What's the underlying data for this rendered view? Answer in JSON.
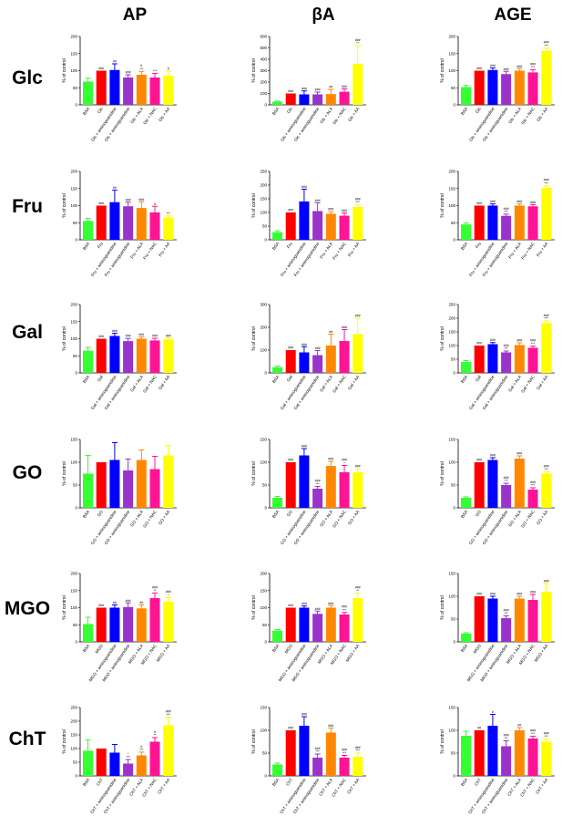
{
  "column_titles": [
    "AP",
    "βA",
    "AGE"
  ],
  "row_titles": [
    "Glc",
    "Fru",
    "Gal",
    "GO",
    "MGO",
    "ChT"
  ],
  "colors": [
    "#33ff33",
    "#ff0000",
    "#0000ff",
    "#9933cc",
    "#ff8800",
    "#ff1493",
    "#ffff00"
  ],
  "chart_data": [
    {
      "type": "bar",
      "row": "Glc",
      "column": "AP",
      "ylabel": "% of control",
      "yticks": [
        0,
        50,
        100,
        150,
        200
      ],
      "ylim": [
        0,
        200
      ],
      "categories": [
        "BSA",
        "Glc",
        "Glc + aminoguanidine",
        "Glc + aminoguanidine",
        "Glc + ALA",
        "Glc + NAC",
        "Glc + AA"
      ],
      "values": [
        68,
        100,
        102,
        80,
        88,
        80,
        85
      ],
      "errors": [
        10,
        0,
        18,
        8,
        10,
        12,
        14
      ],
      "labels": [
        "",
        "###",
        "##",
        "###",
        "#\n***",
        "***",
        "#"
      ]
    },
    {
      "type": "bar",
      "row": "Glc",
      "column": "βA",
      "ylabel": "% of control",
      "yticks": [
        0,
        100,
        200,
        300,
        400,
        500,
        600
      ],
      "ylim": [
        0,
        600
      ],
      "categories": [
        "BSA",
        "Glc",
        "Glc + aminoguanidine",
        "Glc + aminoguanidine",
        "Glc + ALA",
        "Glc + NAC",
        "Glc + AA"
      ],
      "values": [
        28,
        100,
        92,
        92,
        95,
        115,
        360
      ],
      "errors": [
        5,
        0,
        30,
        20,
        40,
        25,
        160
      ],
      "labels": [
        "",
        "###",
        "###",
        "###",
        "##",
        "###",
        "###\n**"
      ]
    },
    {
      "type": "bar",
      "row": "Glc",
      "column": "AGE",
      "ylabel": "% of control",
      "yticks": [
        0,
        50,
        100,
        150,
        200
      ],
      "ylim": [
        0,
        200
      ],
      "categories": [
        "BSA",
        "Glc",
        "Glc + aminoguanidine",
        "Glc + aminoguanidine",
        "Glc + ALA",
        "Glc + NAC",
        "Glc + AA"
      ],
      "values": [
        52,
        100,
        102,
        90,
        100,
        95,
        158
      ],
      "errors": [
        5,
        0,
        6,
        8,
        6,
        8,
        8
      ],
      "labels": [
        "",
        "###",
        "###",
        "###",
        "###",
        "###\n***",
        "###\n***"
      ]
    },
    {
      "type": "bar",
      "row": "Fru",
      "column": "AP",
      "ylabel": "% of control",
      "yticks": [
        0,
        50,
        100,
        150,
        200
      ],
      "ylim": [
        0,
        200
      ],
      "categories": [
        "BSA",
        "Fru",
        "Fru + aminoguanidine",
        "Fru + aminoguanidine",
        "Fru + ALA",
        "Fru + NAC",
        "Fru + AA"
      ],
      "values": [
        55,
        100,
        110,
        98,
        93,
        80,
        65
      ],
      "errors": [
        8,
        0,
        35,
        12,
        18,
        18,
        5
      ],
      "labels": [
        "",
        "###",
        "##",
        "###",
        "###",
        "#",
        "***"
      ]
    },
    {
      "type": "bar",
      "row": "Fru",
      "column": "βA",
      "ylabel": "% of control",
      "yticks": [
        0,
        50,
        100,
        150,
        200,
        250
      ],
      "ylim": [
        0,
        250
      ],
      "categories": [
        "BSA",
        "Fru",
        "Fru + aminoguanidine",
        "Fru + aminoguanidine",
        "Fru + ALA",
        "Fru + NAC",
        "Fru + AA"
      ],
      "values": [
        28,
        100,
        140,
        105,
        95,
        88,
        120
      ],
      "errors": [
        5,
        0,
        45,
        30,
        8,
        10,
        8
      ],
      "labels": [
        "",
        "###",
        "###",
        "###",
        "###",
        "###",
        "###\n***"
      ]
    },
    {
      "type": "bar",
      "row": "Fru",
      "column": "AGE",
      "ylabel": "% of control",
      "yticks": [
        0,
        50,
        100,
        150,
        200
      ],
      "ylim": [
        0,
        200
      ],
      "categories": [
        "BSA",
        "Fru",
        "Fru + aminoguanidine",
        "Fru + aminoguanidine",
        "Fru + ALA",
        "Fru + NAC",
        "Fru + AA"
      ],
      "values": [
        45,
        100,
        100,
        70,
        100,
        98,
        152
      ],
      "errors": [
        4,
        0,
        5,
        5,
        5,
        5,
        6
      ],
      "labels": [
        "",
        "###",
        "###",
        "###\n***",
        "###",
        "###",
        "###\n***"
      ]
    },
    {
      "type": "bar",
      "row": "Gal",
      "column": "AP",
      "ylabel": "% of control",
      "yticks": [
        0,
        50,
        100,
        150,
        200
      ],
      "ylim": [
        0,
        200
      ],
      "categories": [
        "BSA",
        "Gal",
        "Gal + aminoguanidine",
        "Gal + aminoguanidine",
        "Gal + ALA",
        "Gal + NAC",
        "Gal + AA"
      ],
      "values": [
        65,
        100,
        108,
        93,
        100,
        95,
        98
      ],
      "errors": [
        10,
        0,
        8,
        8,
        5,
        6,
        4
      ],
      "labels": [
        "",
        "###",
        "###",
        "###",
        "###",
        "###",
        "###"
      ]
    },
    {
      "type": "bar",
      "row": "Gal",
      "column": "βA",
      "ylabel": "% of control",
      "yticks": [
        0,
        100,
        200,
        300
      ],
      "ylim": [
        0,
        300
      ],
      "categories": [
        "BSA",
        "Gal",
        "Gal + aminoguanidine",
        "Gal + aminoguanidine",
        "Gal + ALA",
        "Gal + NAC",
        "Gal + AA"
      ],
      "values": [
        25,
        100,
        90,
        78,
        120,
        140,
        170
      ],
      "errors": [
        5,
        0,
        25,
        20,
        50,
        50,
        70
      ],
      "labels": [
        "",
        "###",
        "###",
        "###",
        "##",
        "###",
        "###"
      ]
    },
    {
      "type": "bar",
      "row": "Gal",
      "column": "AGE",
      "ylabel": "% of control",
      "yticks": [
        0,
        50,
        100,
        150,
        200,
        250
      ],
      "ylim": [
        0,
        250
      ],
      "categories": [
        "BSA",
        "Gal",
        "Gal + aminoguanidine",
        "Gal + aminoguanidine",
        "Gal + ALA",
        "Gal + NAC",
        "Gal + AA"
      ],
      "values": [
        40,
        100,
        105,
        75,
        102,
        92,
        182
      ],
      "errors": [
        5,
        0,
        6,
        5,
        8,
        6,
        8
      ],
      "labels": [
        "",
        "###",
        "###",
        "###\n***",
        "###",
        "###\n***",
        "###\n***"
      ]
    },
    {
      "type": "bar",
      "row": "GO",
      "column": "AP",
      "ylabel": "% of control",
      "yticks": [
        0,
        50,
        100,
        150
      ],
      "ylim": [
        0,
        150
      ],
      "categories": [
        "BSA",
        "GO",
        "GO + aminoguanidine",
        "GO + aminoguanidine",
        "GO + ALA",
        "GO + NAC",
        "GO + AA"
      ],
      "values": [
        75,
        100,
        105,
        82,
        105,
        85,
        115
      ],
      "errors": [
        40,
        0,
        38,
        25,
        22,
        28,
        22
      ],
      "labels": [
        "",
        "",
        "",
        "",
        "",
        "",
        ""
      ]
    },
    {
      "type": "bar",
      "row": "GO",
      "column": "βA",
      "ylabel": "% of control",
      "yticks": [
        0,
        50,
        100,
        150
      ],
      "ylim": [
        0,
        150
      ],
      "categories": [
        "BSA",
        "GO",
        "GO + aminoguanidine",
        "GO + aminoguanidine",
        "GO + ALA",
        "GO + NAC",
        "GO + AA"
      ],
      "values": [
        22,
        100,
        115,
        42,
        92,
        78,
        78
      ],
      "errors": [
        3,
        0,
        15,
        5,
        10,
        15,
        8
      ],
      "labels": [
        "",
        "###",
        "###",
        "###\n***",
        "###",
        "###\n*",
        "###"
      ]
    },
    {
      "type": "bar",
      "row": "GO",
      "column": "AGE",
      "ylabel": "% of control",
      "yticks": [
        0,
        50,
        100,
        150
      ],
      "ylim": [
        0,
        150
      ],
      "categories": [
        "BSA",
        "GO",
        "GO + aminoguanidine",
        "GO + aminoguanidine",
        "GO + ALA",
        "GO + NAC",
        "GO + AA"
      ],
      "values": [
        22,
        100,
        105,
        50,
        108,
        40,
        75
      ],
      "errors": [
        2,
        0,
        5,
        4,
        6,
        4,
        4
      ],
      "labels": [
        "",
        "###",
        "###",
        "###\n***",
        "###",
        "###\n***",
        "###\n***"
      ]
    },
    {
      "type": "bar",
      "row": "MGO",
      "column": "AP",
      "ylabel": "% of control",
      "yticks": [
        0,
        50,
        100,
        150,
        200
      ],
      "ylim": [
        0,
        200
      ],
      "categories": [
        "BSA",
        "MGO",
        "MGO + aminoguanidine",
        "MGO + aminoguanidine",
        "MGO + ALA",
        "MGO + NAC",
        "MGO + AA"
      ],
      "values": [
        52,
        100,
        100,
        102,
        98,
        128,
        118
      ],
      "errors": [
        20,
        0,
        8,
        12,
        10,
        15,
        12
      ],
      "labels": [
        "",
        "###",
        "##",
        "###",
        "##",
        "###\n**",
        "###\n*"
      ]
    },
    {
      "type": "bar",
      "row": "MGO",
      "column": "βA",
      "ylabel": "% of control",
      "yticks": [
        0,
        50,
        100,
        150,
        200
      ],
      "ylim": [
        0,
        200
      ],
      "categories": [
        "BSA",
        "MGO",
        "MGO + aminoguanidine",
        "MGO + aminoguanidine",
        "MGO + ALA",
        "MGO + NAC",
        "MGO + AA"
      ],
      "values": [
        33,
        100,
        100,
        82,
        100,
        80,
        128
      ],
      "errors": [
        3,
        0,
        5,
        8,
        6,
        6,
        15
      ],
      "labels": [
        "",
        "###",
        "###",
        "###",
        "###",
        "###\n***",
        "###\n**"
      ]
    },
    {
      "type": "bar",
      "row": "MGO",
      "column": "AGE",
      "ylabel": "% of control",
      "yticks": [
        0,
        50,
        100,
        150
      ],
      "ylim": [
        0,
        150
      ],
      "categories": [
        "BSA",
        "MGO",
        "MGO + aminoguanidine",
        "MGO + aminoguanidine",
        "MGO + ALA",
        "MGO + NAC",
        "MGO + AA"
      ],
      "values": [
        18,
        100,
        95,
        52,
        95,
        92,
        110
      ],
      "errors": [
        2,
        0,
        5,
        5,
        5,
        12,
        18
      ],
      "labels": [
        "",
        "###",
        "###",
        "###\n***",
        "###",
        "###",
        "###"
      ]
    },
    {
      "type": "bar",
      "row": "ChT",
      "column": "AP",
      "ylabel": "% of control",
      "yticks": [
        0,
        50,
        100,
        150,
        200,
        250
      ],
      "ylim": [
        0,
        250
      ],
      "categories": [
        "BSA",
        "ChT",
        "ChT + aminoguanidine",
        "ChT + aminoguanidine",
        "ChT + ALA",
        "ChT + NAC",
        "ChT + AA"
      ],
      "values": [
        92,
        100,
        85,
        45,
        75,
        125,
        185
      ],
      "errors": [
        40,
        0,
        30,
        15,
        12,
        15,
        30
      ],
      "labels": [
        "",
        "",
        "",
        "*\n***",
        "#\n***",
        "#\n**",
        "###\n***"
      ]
    },
    {
      "type": "bar",
      "row": "ChT",
      "column": "βA",
      "ylabel": "% of control",
      "yticks": [
        0,
        50,
        100,
        150
      ],
      "ylim": [
        0,
        150
      ],
      "categories": [
        "BSA",
        "ChT",
        "ChT + aminoguanidine",
        "ChT + aminoguanidine",
        "ChT + ALA",
        "ChT + NAC",
        "ChT + AA"
      ],
      "values": [
        25,
        100,
        110,
        40,
        95,
        40,
        42
      ],
      "errors": [
        3,
        0,
        20,
        8,
        10,
        5,
        8
      ],
      "labels": [
        "",
        "###",
        "###",
        "###\n***",
        "###",
        "###\n***",
        "###\n***"
      ]
    },
    {
      "type": "bar",
      "row": "ChT",
      "column": "AGE",
      "ylabel": "% of control",
      "yticks": [
        0,
        50,
        100,
        150
      ],
      "ylim": [
        0,
        150
      ],
      "categories": [
        "BSA",
        "ChT",
        "ChT + aminoguanidine",
        "ChT + aminoguanidine",
        "ChT + ALA",
        "ChT + NAC",
        "ChT + AA"
      ],
      "values": [
        88,
        100,
        110,
        65,
        100,
        82,
        75
      ],
      "errors": [
        10,
        0,
        25,
        12,
        6,
        5,
        6
      ],
      "labels": [
        "",
        "##",
        "#",
        "###\n***",
        "##",
        "###\n***",
        "###\n***"
      ]
    }
  ]
}
